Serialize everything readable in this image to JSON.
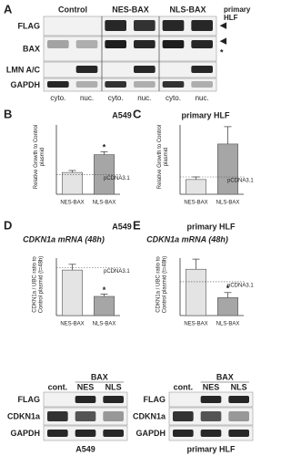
{
  "blot_a": {
    "label": "A",
    "columns": [
      "Control",
      "NES-BAX",
      "NLS-BAX"
    ],
    "rows": [
      "FLAG",
      "BAX",
      "LMN A/C",
      "GAPDH"
    ],
    "lanes": [
      "cyto.",
      "nuc.",
      "cyto.",
      "nuc.",
      "cyto.",
      "nuc."
    ],
    "cell_line": "primary HLF",
    "markers": [
      "◀",
      "◀",
      "*"
    ]
  },
  "chart_data": [
    {
      "type": "bar",
      "label": "B",
      "title": "A549",
      "ylabel": "Relative Growth to Control plasmid",
      "categories": [
        "NES-BAX",
        "NLS-BAX"
      ],
      "values": [
        1.1,
        2.0
      ],
      "errors": [
        0.1,
        0.15
      ],
      "colors": [
        "#e4e4e4",
        "#a6a6a6"
      ],
      "ylim": [
        0,
        3.5
      ],
      "reference": 1,
      "reference_label": "pCDNA3.1",
      "annotation": "*"
    },
    {
      "type": "bar",
      "label": "C",
      "title": "primary HLF",
      "ylabel": "Relative Growth to Control plasmid",
      "categories": [
        "NES-BAX",
        "NLS-BAX"
      ],
      "values": [
        0.85,
        2.9
      ],
      "errors": [
        0.15,
        1.0
      ],
      "colors": [
        "#e4e4e4",
        "#a6a6a6"
      ],
      "ylim": [
        0,
        4
      ],
      "reference": 1,
      "reference_label": "pCDNA3.1"
    },
    {
      "type": "bar",
      "label": "D",
      "title": "A549",
      "subtitle": "CDKN1a mRNA (48h)",
      "ylabel": "CDKN1a / UBC ratio to Control plasmid (t=48h)",
      "categories": [
        "NES-BAX",
        "NLS-BAX"
      ],
      "values": [
        0.95,
        0.4
      ],
      "errors": [
        0.12,
        0.05
      ],
      "colors": [
        "#e4e4e4",
        "#a6a6a6"
      ],
      "ylim": [
        0,
        1.2
      ],
      "reference": 1,
      "reference_label": "pCDNA3.1",
      "annotation": "*"
    },
    {
      "type": "bar",
      "label": "E",
      "title": "primary HLF",
      "subtitle": "CDKN1a mRNA (48h)",
      "ylabel": "CDKN1a / UBC ratio to Control plasmid (t=48h)",
      "categories": [
        "NES-BAX",
        "NLS-BAX"
      ],
      "values": [
        1.37,
        0.53
      ],
      "errors": [
        0.3,
        0.15
      ],
      "colors": [
        "#e4e4e4",
        "#a6a6a6"
      ],
      "ylim": [
        0,
        1.7
      ],
      "reference": 1,
      "reference_label": "pCDNA3.1",
      "annotation": "*"
    }
  ],
  "blot_d": {
    "group": "BAX",
    "lanes": [
      "cont.",
      "NES",
      "NLS"
    ],
    "rows": [
      "FLAG",
      "CDKN1a",
      "GAPDH"
    ],
    "cell_line": "A549"
  },
  "blot_e": {
    "group": "BAX",
    "lanes": [
      "cont.",
      "NES",
      "NLS"
    ],
    "rows": [
      "FLAG",
      "CDKN1a",
      "GAPDH"
    ],
    "cell_line": "primary HLF"
  }
}
